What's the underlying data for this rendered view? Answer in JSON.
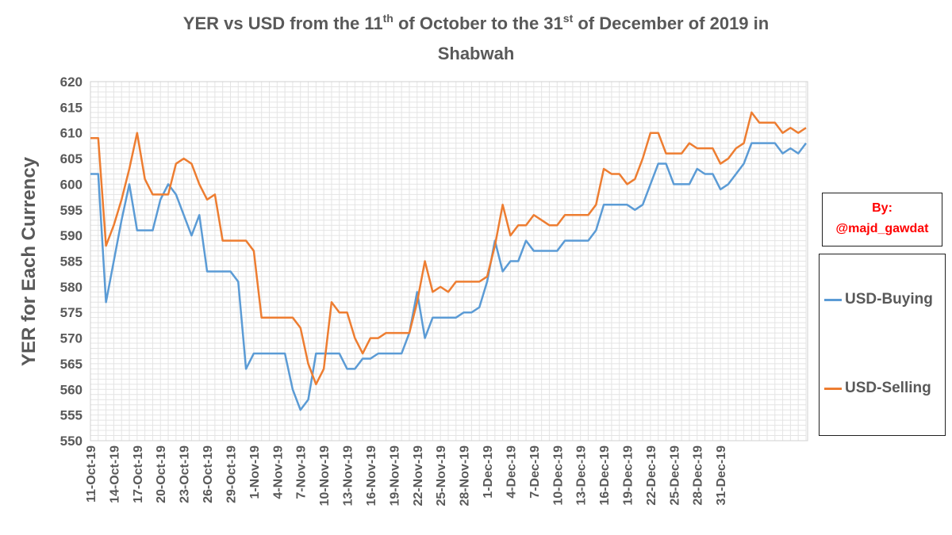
{
  "chart_data": {
    "type": "line",
    "title_line1_prefix": "YER vs USD from the 11",
    "title_sup1": "th",
    "title_line1_mid": " of October to the 31",
    "title_sup2": "st",
    "title_line1_suffix": " of December of 2019 in",
    "title_line2": "Shabwah",
    "ylabel": "YER for Each Currency",
    "xlabel": "",
    "ylim": [
      550,
      620
    ],
    "ytick_step": 5,
    "grid": true,
    "legend_position": "right",
    "x_start_date": "2019-10-11",
    "x_tick_labels": [
      "11-Oct-19",
      "14-Oct-19",
      "17-Oct-19",
      "20-Oct-19",
      "23-Oct-19",
      "26-Oct-19",
      "29-Oct-19",
      "1-Nov-19",
      "4-Nov-19",
      "7-Nov-19",
      "10-Nov-19",
      "13-Nov-19",
      "16-Nov-19",
      "19-Nov-19",
      "22-Nov-19",
      "25-Nov-19",
      "28-Nov-19",
      "1-Dec-19",
      "4-Dec-19",
      "7-Dec-19",
      "10-Dec-19",
      "13-Dec-19",
      "16-Dec-19",
      "19-Dec-19",
      "22-Dec-19",
      "25-Dec-19",
      "28-Dec-19",
      "31-Dec-19"
    ],
    "series": [
      {
        "name": "USD-Buying",
        "color": "#5b9bd5",
        "values": [
          602,
          602,
          577,
          585,
          593,
          600,
          591,
          591,
          591,
          597,
          600,
          598,
          594,
          590,
          594,
          583,
          583,
          583,
          583,
          581,
          564,
          567,
          567,
          567,
          567,
          567,
          560,
          556,
          558,
          567,
          567,
          567,
          567,
          564,
          564,
          566,
          566,
          567,
          567,
          567,
          567,
          571,
          579,
          570,
          574,
          574,
          574,
          574,
          575,
          575,
          576,
          581,
          589,
          583,
          585,
          585,
          589,
          587,
          587,
          587,
          587,
          589,
          589,
          589,
          589,
          591,
          596,
          596,
          596,
          596,
          595,
          596,
          600,
          604,
          604,
          600,
          600,
          600,
          603,
          602,
          602,
          599,
          600,
          602,
          604,
          608,
          608,
          608,
          608,
          606,
          607,
          606,
          608
        ]
      },
      {
        "name": "USD-Selling",
        "color": "#ed7d31",
        "values": [
          609,
          609,
          588,
          592,
          597,
          603,
          610,
          601,
          598,
          598,
          598,
          604,
          605,
          604,
          600,
          597,
          598,
          589,
          589,
          589,
          589,
          587,
          574,
          574,
          574,
          574,
          574,
          572,
          565,
          561,
          564,
          577,
          575,
          575,
          570,
          567,
          570,
          570,
          571,
          571,
          571,
          571,
          577,
          585,
          579,
          580,
          579,
          581,
          581,
          581,
          581,
          582,
          588,
          596,
          590,
          592,
          592,
          594,
          593,
          592,
          592,
          594,
          594,
          594,
          594,
          596,
          603,
          602,
          602,
          600,
          601,
          605,
          610,
          610,
          606,
          606,
          606,
          608,
          607,
          607,
          607,
          604,
          605,
          607,
          608,
          614,
          612,
          612,
          612,
          610,
          611,
          610,
          611
        ]
      }
    ]
  },
  "credit": {
    "line1": "By:",
    "line2": "@majd_gawdat"
  },
  "legend": {
    "buying": "USD-Buying",
    "selling": "USD-Selling"
  }
}
